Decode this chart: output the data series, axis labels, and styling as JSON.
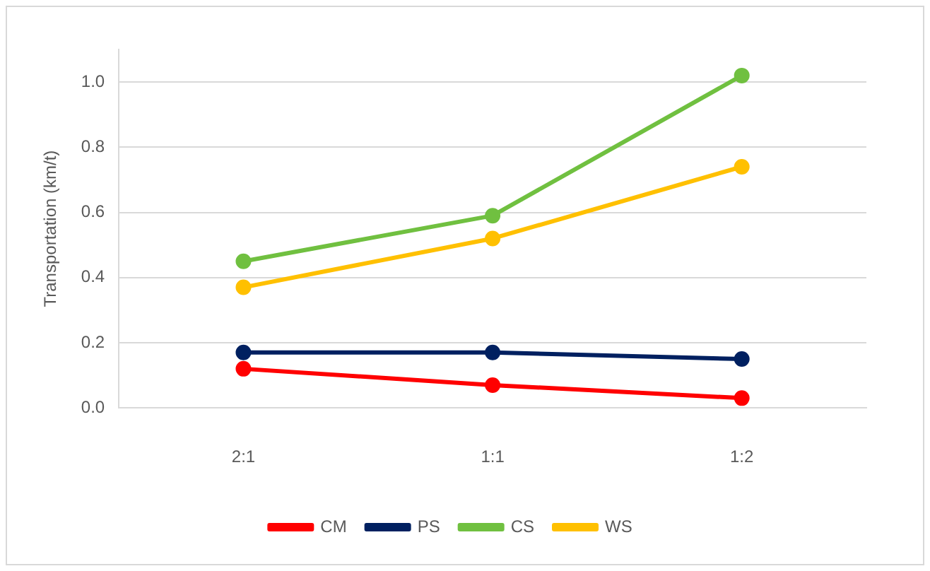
{
  "chart_data": {
    "type": "line",
    "ylabel": "Transportation (km/t)",
    "categories": [
      "2:1",
      "1:1",
      "1:2"
    ],
    "series": [
      {
        "name": "CM",
        "color": "#ff0000",
        "values": [
          0.12,
          0.07,
          0.03
        ]
      },
      {
        "name": "PS",
        "color": "#002060",
        "values": [
          0.17,
          0.17,
          0.15
        ]
      },
      {
        "name": "CS",
        "color": "#70c040",
        "values": [
          0.45,
          0.59,
          1.02
        ]
      },
      {
        "name": "WS",
        "color": "#ffc000",
        "values": [
          0.37,
          0.52,
          0.74
        ]
      }
    ],
    "ylim": [
      0,
      1.1
    ],
    "yticks": [
      {
        "value": 0,
        "label": "0.0"
      },
      {
        "value": 0.2,
        "label": "0.2"
      },
      {
        "value": 0.4,
        "label": "0.4"
      },
      {
        "value": 0.6,
        "label": "0.6"
      },
      {
        "value": 0.8,
        "label": "0.8"
      },
      {
        "value": 1,
        "label": "1.0"
      }
    ],
    "grid": "y",
    "legend": "bottom",
    "marker": "circle",
    "line_style": "solid"
  }
}
